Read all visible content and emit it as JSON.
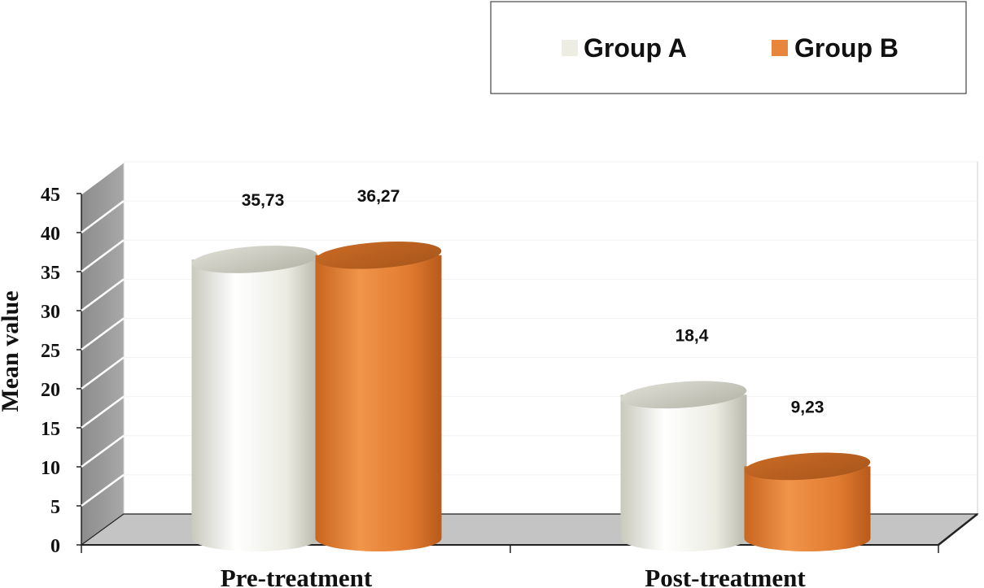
{
  "chart_data": {
    "type": "bar",
    "categories": [
      "Pre-treatment",
      "Post-treatment"
    ],
    "series": [
      {
        "name": "Group A",
        "values": [
          35.73,
          18.4
        ],
        "labels": [
          "35,73",
          "18,4"
        ],
        "color": "#efefe6"
      },
      {
        "name": "Group B",
        "values": [
          36.27,
          9.23
        ],
        "labels": [
          "36,27",
          "9,23"
        ],
        "color": "#e8873c"
      }
    ],
    "xlabel": "",
    "ylabel": "Mean value",
    "ylim": [
      0,
      45
    ],
    "yticks": [
      0,
      5,
      10,
      15,
      20,
      25,
      30,
      35,
      40,
      45
    ],
    "grid": true,
    "style": "3d-cylinder",
    "legend_position": "top-right"
  }
}
